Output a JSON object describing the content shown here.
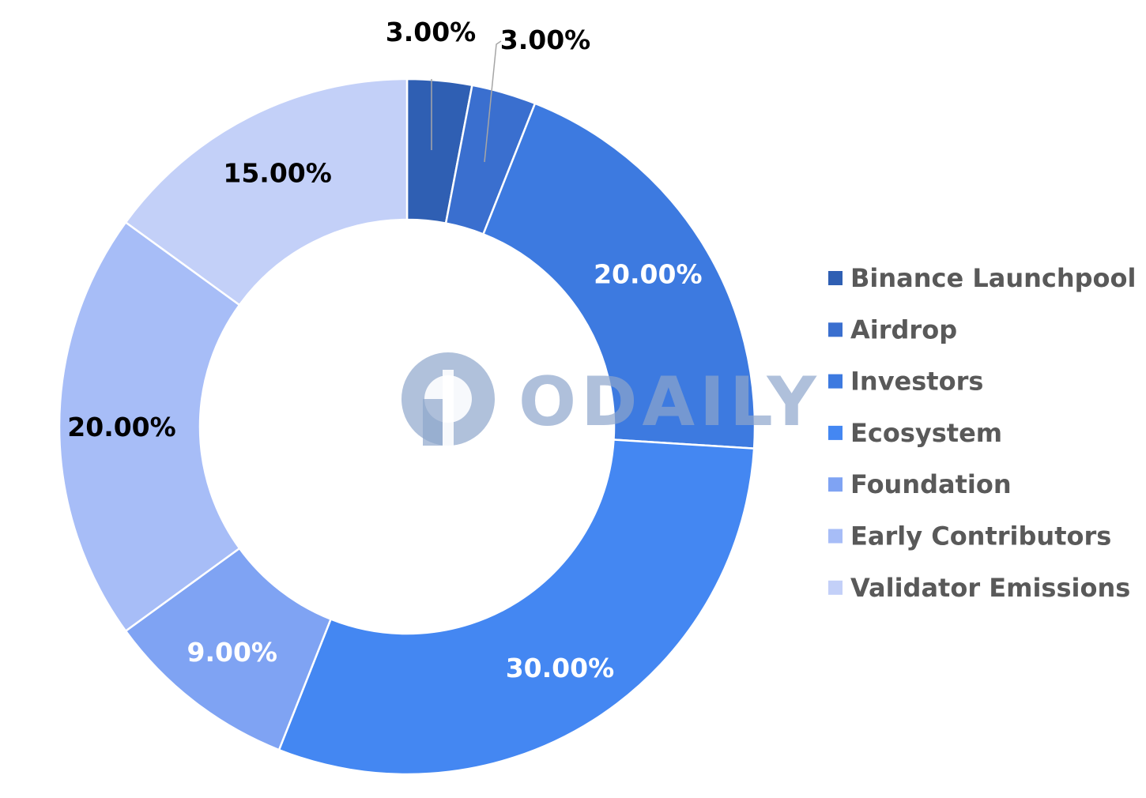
{
  "chart_data": {
    "type": "pie",
    "variant": "donut",
    "categories": [
      "Binance Launchpool",
      "Airdrop",
      "Investors",
      "Ecosystem",
      "Foundation",
      "Early Contributors",
      "Validator Emissions"
    ],
    "values": [
      3,
      3,
      20,
      30,
      9,
      20,
      15
    ],
    "data_labels": [
      "3.00%",
      "3.00%",
      "20.00%",
      "30.00%",
      "9.00%",
      "20.00%",
      "15.00%"
    ],
    "colors": [
      "#2f5fb3",
      "#3a6fcf",
      "#3d7ae0",
      "#4487f2",
      "#7fa3f3",
      "#a7bdf7",
      "#c3d0f8"
    ],
    "label_colors": [
      "#000000",
      "#000000",
      "#ffffff",
      "#ffffff",
      "#ffffff",
      "#000000",
      "#000000"
    ],
    "start_angle": "top",
    "direction": "clockwise",
    "legend_position": "right",
    "title": ""
  },
  "watermark": {
    "text": "ODAILY",
    "color": "#8ea6cc",
    "icon": "odaily-logo-icon"
  }
}
